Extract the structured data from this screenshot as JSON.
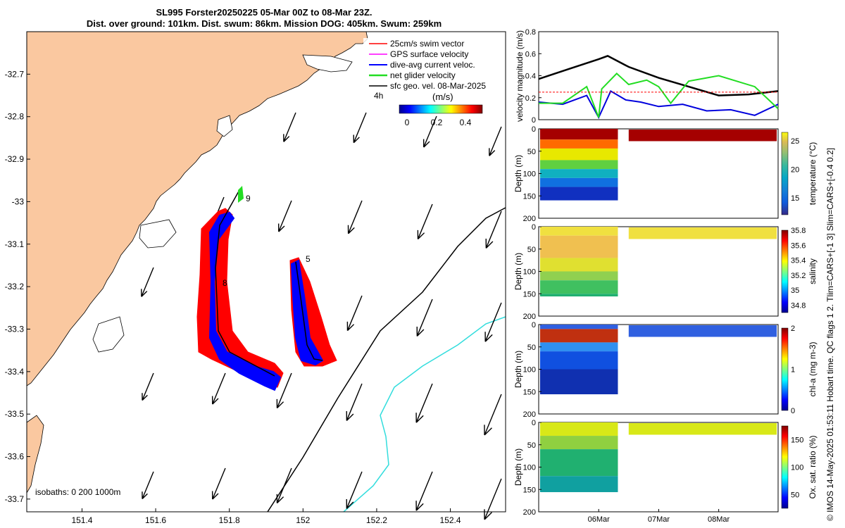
{
  "header": {
    "title_line1": "SL995 Forster20250225 05-Mar 00Z to 08-Mar 23Z.",
    "title_line2": "Dist. over ground: 101km. Dist. swum: 86km. Mission DOG: 405km. Swum: 259km"
  },
  "side_note": "© IMOS 14-May-2025 01:53:11 Hobart time. QC flags 1  2. Tlim=CARS+[-1 3] Slim=CARS+[-0.4 0.2]",
  "colors": {
    "land": "#FAC8A0",
    "glider_track": "#0000FF",
    "swim_vector": "#FF0000",
    "net_velocity": "#22DD22",
    "gps_velocity": "#FF00FF",
    "isobath_200": "#000000",
    "isobath_1000": "#33DDDD",
    "sfc_geo_vector": "#000000"
  },
  "map": {
    "xticks": [
      "151.4",
      "151.6",
      "151.8",
      "152",
      "152.2",
      "152.4"
    ],
    "yticks": [
      "-32.7",
      "-32.8",
      "-32.9",
      "-33",
      "-33.1",
      "-33.2",
      "-33.3",
      "-33.4",
      "-33.5",
      "-33.6",
      "-33.7"
    ],
    "xlim": [
      151.25,
      152.55
    ],
    "ylim": [
      -33.73,
      -32.6
    ],
    "legend": [
      {
        "label": "25cm/s swim vector",
        "icon": "arrow-red"
      },
      {
        "label": "GPS surface velocity",
        "icon": "arrow-magenta"
      },
      {
        "label": "dive-avg current veloc.",
        "icon": "arrow-blue"
      },
      {
        "label": "net glider velocity",
        "icon": "arrow-green"
      },
      {
        "label": "sfc geo. vel. 08-Mar-2025",
        "icon": "arrow-black"
      }
    ],
    "legend_scale_label": "4h",
    "colorbar_title": "(m/s)",
    "colorbar_ticks": [
      "0",
      "0.2",
      "0.4"
    ],
    "track_labels": [
      "9",
      "5",
      "8"
    ],
    "isobath_label": "isobaths: 0   200  1000m"
  },
  "chart_data": [
    {
      "type": "line",
      "ylabel": "velocity magnitude (m/s)",
      "ylim": [
        0,
        0.8
      ],
      "yticks": [
        "0",
        "0.2",
        "0.4",
        "0.6",
        "0.8"
      ],
      "x_range_days": [
        5.0,
        8.99
      ],
      "series": [
        {
          "color": "#000000",
          "x": [
            5.0,
            5.5,
            6.0,
            6.15,
            6.5,
            7.0,
            7.5,
            8.0,
            8.5,
            8.99
          ],
          "values": [
            0.37,
            0.46,
            0.55,
            0.58,
            0.48,
            0.38,
            0.3,
            0.22,
            0.23,
            0.26
          ]
        },
        {
          "color": "#0000DD",
          "x": [
            5.0,
            5.4,
            5.8,
            6.0,
            6.2,
            6.45,
            6.7,
            7.0,
            7.4,
            7.8,
            8.2,
            8.6,
            8.99
          ],
          "values": [
            0.16,
            0.14,
            0.22,
            0.02,
            0.26,
            0.18,
            0.16,
            0.12,
            0.14,
            0.08,
            0.09,
            0.04,
            0.14
          ]
        },
        {
          "color": "#22DD22",
          "x": [
            5.0,
            5.4,
            5.8,
            6.0,
            6.05,
            6.3,
            6.5,
            6.8,
            7.0,
            7.2,
            7.5,
            7.8,
            8.0,
            8.3,
            8.6,
            8.99
          ],
          "values": [
            0.15,
            0.15,
            0.3,
            0.02,
            0.28,
            0.42,
            0.32,
            0.36,
            0.3,
            0.15,
            0.35,
            0.38,
            0.4,
            0.35,
            0.3,
            0.1
          ]
        },
        {
          "color": "#FF0000",
          "x": [
            5.0,
            8.99
          ],
          "values": [
            0.25,
            0.25
          ]
        }
      ]
    },
    {
      "type": "heatmap",
      "ylabel": "Depth (m)",
      "colorbar_label": "temperature (°C)",
      "colorbar_ticks": [
        "15",
        "20",
        "25"
      ],
      "clim": [
        12,
        26.5
      ],
      "ylim": [
        200,
        0
      ],
      "yticks": [
        "0",
        "50",
        "100",
        "150",
        "200"
      ]
    },
    {
      "type": "heatmap",
      "ylabel": "Depth (m)",
      "colorbar_label": "salinity",
      "colorbar_ticks": [
        "34.8",
        "35",
        "35.2",
        "35.4",
        "35.6",
        "35.8"
      ],
      "clim": [
        34.7,
        35.8
      ],
      "ylim": [
        200,
        0
      ],
      "yticks": [
        "0",
        "50",
        "100",
        "150",
        "200"
      ]
    },
    {
      "type": "heatmap",
      "ylabel": "Depth (m)",
      "colorbar_label": "chl-a (mg m-3)",
      "colorbar_ticks": [
        "0",
        "1",
        "2"
      ],
      "clim": [
        0,
        2
      ],
      "ylim": [
        200,
        0
      ],
      "yticks": [
        "0",
        "50",
        "100",
        "150",
        "200"
      ]
    },
    {
      "type": "heatmap",
      "ylabel": "Depth (m)",
      "colorbar_label": "Ox. sat. ratio (%)",
      "colorbar_ticks": [
        "50",
        "100",
        "150"
      ],
      "clim": [
        25,
        175
      ],
      "ylim": [
        200,
        0
      ],
      "yticks": [
        "0",
        "50",
        "100",
        "150",
        "200"
      ],
      "xticks": [
        "06Mar",
        "07Mar",
        "08Mar"
      ],
      "xtick_days": [
        6,
        7,
        8
      ]
    }
  ]
}
